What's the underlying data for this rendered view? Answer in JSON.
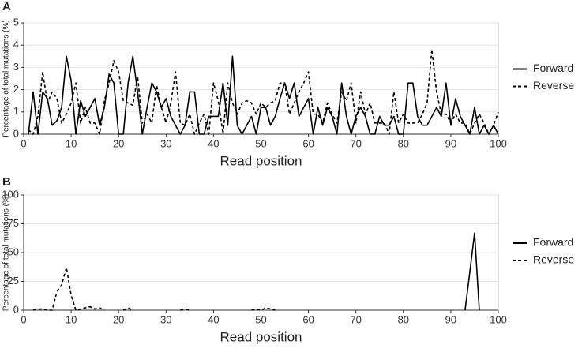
{
  "chart_data": [
    {
      "type": "line",
      "panel_label": "A",
      "xlabel": "Read position",
      "ylabel": "Percentage of total mutations (%)",
      "x": [
        1,
        2,
        3,
        4,
        5,
        6,
        7,
        8,
        9,
        10,
        11,
        12,
        13,
        14,
        15,
        16,
        17,
        18,
        19,
        20,
        21,
        22,
        23,
        24,
        25,
        26,
        27,
        28,
        29,
        30,
        31,
        32,
        33,
        34,
        35,
        36,
        37,
        38,
        39,
        40,
        41,
        42,
        43,
        44,
        45,
        46,
        47,
        48,
        49,
        50,
        51,
        52,
        53,
        54,
        55,
        56,
        57,
        58,
        59,
        60,
        61,
        62,
        63,
        64,
        65,
        66,
        67,
        68,
        69,
        70,
        71,
        72,
        73,
        74,
        75,
        76,
        77,
        78,
        79,
        80,
        81,
        82,
        83,
        84,
        85,
        86,
        87,
        88,
        89,
        90,
        91,
        92,
        93,
        94,
        95,
        96,
        97,
        98,
        99,
        100
      ],
      "series": [
        {
          "name": "Forward",
          "color": "#000000",
          "line_style": "solid",
          "values": [
            0,
            1.9,
            0,
            1.9,
            1.6,
            0.4,
            0.6,
            1.2,
            3.5,
            2.4,
            0,
            1.5,
            0.8,
            1.2,
            1.6,
            0.4,
            1.2,
            2.7,
            2.3,
            0,
            0,
            2.3,
            3.5,
            1.9,
            0,
            1.2,
            2.3,
            1.9,
            1.2,
            1.6,
            0.8,
            0.4,
            0,
            0.4,
            1.9,
            1.9,
            0,
            0,
            0.8,
            0.8,
            0.8,
            2.3,
            0.4,
            3.5,
            0.4,
            0,
            0.4,
            0.8,
            0,
            1.2,
            1.2,
            0.4,
            0.8,
            1.6,
            2.3,
            1.6,
            2.3,
            0.8,
            1.2,
            1.6,
            0,
            1.2,
            0.4,
            1.2,
            0.8,
            0,
            2.3,
            0.8,
            0,
            0.8,
            1.2,
            0.8,
            0,
            0,
            0.8,
            0.4,
            0.4,
            0.8,
            0,
            0,
            2.3,
            2.3,
            0.8,
            0.4,
            0.4,
            0.8,
            1.2,
            0.8,
            2.3,
            0.4,
            1.6,
            0.8,
            0.4,
            0,
            1.2,
            0,
            0.4,
            0,
            0.4,
            0
          ]
        },
        {
          "name": "Reverse",
          "color": "#000000",
          "line_style": "dashed",
          "values": [
            0.2,
            0,
            0.8,
            2.8,
            1.4,
            1.9,
            1.6,
            0.5,
            0.9,
            1.4,
            2.3,
            0.5,
            1.2,
            0.5,
            0.5,
            0,
            1.5,
            2.3,
            3.3,
            2.8,
            1.5,
            1.4,
            1.3,
            2.6,
            0.5,
            0.9,
            0.5,
            2.2,
            1.2,
            0.5,
            1.4,
            2.8,
            0.5,
            0.4,
            0.9,
            0,
            0.5,
            0.9,
            0,
            2.3,
            1.5,
            0,
            2.3,
            1.4,
            0.9,
            1.4,
            1.5,
            1.4,
            0.9,
            1.4,
            1.2,
            1.4,
            1.5,
            2.3,
            2.3,
            0.9,
            1.4,
            1.9,
            2.3,
            2.8,
            0.9,
            0.9,
            0.5,
            1.4,
            0.9,
            0.5,
            1.9,
            1.5,
            2.3,
            0.5,
            1.9,
            0.9,
            1.4,
            0.5,
            0.5,
            0.5,
            0,
            1.9,
            0.5,
            0.9,
            0.5,
            0.5,
            0.5,
            0.9,
            1.4,
            3.8,
            1.9,
            0.9,
            0.9,
            0.5,
            0.9,
            0.5,
            0.5,
            0,
            0.5,
            0.9,
            0.5,
            0,
            0.4,
            1.0
          ]
        }
      ],
      "xlim": [
        0,
        100
      ],
      "xticks": [
        0,
        10,
        20,
        30,
        40,
        50,
        60,
        70,
        80,
        90,
        100
      ],
      "ylim": [
        0,
        5
      ],
      "yticks": [
        0,
        1,
        2,
        3,
        4,
        5
      ],
      "grid": true,
      "legend": "right"
    },
    {
      "type": "line",
      "panel_label": "B",
      "xlabel": "Read position",
      "ylabel": "Percentage of total mutations (%)",
      "x": [
        1,
        2,
        3,
        4,
        5,
        6,
        7,
        8,
        9,
        10,
        11,
        12,
        13,
        14,
        15,
        16,
        17,
        18,
        19,
        20,
        21,
        22,
        23,
        24,
        25,
        26,
        27,
        28,
        29,
        30,
        31,
        32,
        33,
        34,
        35,
        36,
        37,
        38,
        39,
        40,
        41,
        42,
        43,
        44,
        45,
        46,
        47,
        48,
        49,
        50,
        51,
        52,
        53,
        54,
        55,
        56,
        57,
        58,
        59,
        60,
        61,
        62,
        63,
        64,
        65,
        66,
        67,
        68,
        69,
        70,
        71,
        72,
        73,
        74,
        75,
        76,
        77,
        78,
        79,
        80,
        81,
        82,
        83,
        84,
        85,
        86,
        87,
        88,
        89,
        90,
        91,
        92,
        93,
        94,
        95,
        96,
        97,
        98,
        99,
        100
      ],
      "series": [
        {
          "name": "Forward",
          "color": "#000000",
          "line_style": "solid",
          "values": [
            null,
            null,
            null,
            null,
            null,
            null,
            null,
            null,
            null,
            null,
            null,
            null,
            null,
            null,
            null,
            null,
            null,
            null,
            null,
            null,
            null,
            null,
            null,
            null,
            null,
            null,
            null,
            null,
            null,
            null,
            null,
            null,
            null,
            null,
            null,
            null,
            null,
            null,
            null,
            null,
            null,
            null,
            null,
            null,
            null,
            null,
            null,
            null,
            null,
            null,
            null,
            null,
            null,
            null,
            null,
            null,
            null,
            null,
            null,
            null,
            null,
            null,
            null,
            null,
            null,
            null,
            null,
            null,
            null,
            null,
            null,
            null,
            null,
            null,
            null,
            null,
            null,
            null,
            null,
            null,
            null,
            null,
            null,
            null,
            null,
            null,
            null,
            null,
            null,
            null,
            null,
            null,
            0,
            33,
            67,
            0,
            null,
            null,
            null,
            null
          ]
        },
        {
          "name": "Reverse",
          "color": "#000000",
          "line_style": "dashed",
          "values": [
            null,
            0,
            1,
            1,
            0,
            0,
            16,
            22,
            37,
            13,
            0,
            1,
            2,
            3,
            1,
            2,
            0,
            null,
            null,
            null,
            0,
            2,
            0,
            null,
            null,
            null,
            null,
            null,
            null,
            null,
            null,
            null,
            0,
            1,
            0,
            null,
            null,
            null,
            null,
            null,
            null,
            null,
            null,
            null,
            null,
            null,
            null,
            0,
            1,
            0,
            2,
            1,
            0,
            null,
            null,
            null,
            null,
            null,
            null,
            null,
            null,
            null,
            null,
            null,
            null,
            null,
            null,
            null,
            null,
            null,
            null,
            null,
            null,
            null,
            null,
            null,
            null,
            null,
            null,
            null,
            null,
            null,
            null,
            null,
            null,
            null,
            null,
            null,
            null,
            null,
            null,
            null,
            null,
            null,
            null,
            null,
            null,
            null,
            null,
            null
          ]
        }
      ],
      "xlim": [
        0,
        100
      ],
      "xticks": [
        0,
        10,
        20,
        30,
        40,
        50,
        60,
        70,
        80,
        90,
        100
      ],
      "ylim": [
        0,
        100
      ],
      "yticks": [
        0,
        25,
        50,
        75,
        100
      ],
      "grid": true,
      "legend": "right"
    }
  ]
}
